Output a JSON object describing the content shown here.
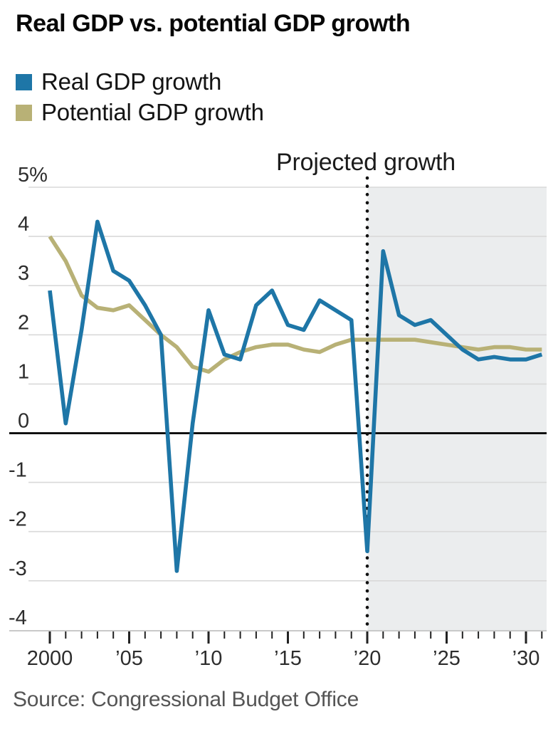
{
  "title": "Real GDP vs. potential GDP growth",
  "legend": [
    {
      "label": "Real GDP growth",
      "color": "#1e76a7"
    },
    {
      "label": "Potential GDP growth",
      "color": "#b8b176"
    }
  ],
  "source": "Source: Congressional Budget Office",
  "chart_data": {
    "type": "line",
    "title": "Real GDP vs. potential GDP growth",
    "annotation": "Projected growth",
    "y_unit": "%",
    "grid": true,
    "legend_position": "top-left",
    "ylim": [
      -4,
      5
    ],
    "projection_start": 2020,
    "projection_shade_color": "#ebedee",
    "zero_line_color": "#000000",
    "gridline_color": "#d9d9d9",
    "axis_line_color": "#c9c9c9",
    "tick_color": "#222222",
    "dotted_line_color": "#111111",
    "x": [
      2000,
      2001,
      2002,
      2003,
      2004,
      2005,
      2006,
      2007,
      2008,
      2009,
      2010,
      2011,
      2012,
      2013,
      2014,
      2015,
      2016,
      2017,
      2018,
      2019,
      2020,
      2021,
      2022,
      2023,
      2024,
      2025,
      2026,
      2027,
      2028,
      2029,
      2030,
      2031
    ],
    "series": [
      {
        "name": "Real GDP growth",
        "color": "#1e76a7",
        "values": [
          2.9,
          0.2,
          2.1,
          4.3,
          3.3,
          3.1,
          2.6,
          2.0,
          -2.8,
          0.2,
          2.5,
          1.6,
          1.5,
          2.6,
          2.9,
          2.2,
          2.1,
          2.7,
          2.5,
          2.3,
          -2.4,
          3.7,
          2.4,
          2.2,
          2.3,
          2.0,
          1.7,
          1.5,
          1.55,
          1.5,
          1.5,
          1.6
        ]
      },
      {
        "name": "Potential GDP growth",
        "color": "#b8b176",
        "values": [
          4.0,
          3.5,
          2.8,
          2.55,
          2.5,
          2.6,
          2.3,
          2.0,
          1.75,
          1.35,
          1.25,
          1.5,
          1.65,
          1.75,
          1.8,
          1.8,
          1.7,
          1.65,
          1.8,
          1.9,
          1.9,
          1.9,
          1.9,
          1.9,
          1.85,
          1.8,
          1.75,
          1.7,
          1.75,
          1.75,
          1.7,
          1.7
        ]
      }
    ],
    "yticks": [
      {
        "v": 5,
        "label": "5%"
      },
      {
        "v": 4,
        "label": "4"
      },
      {
        "v": 3,
        "label": "3"
      },
      {
        "v": 2,
        "label": "2"
      },
      {
        "v": 1,
        "label": "1"
      },
      {
        "v": 0,
        "label": "0"
      },
      {
        "v": -1,
        "label": "-1"
      },
      {
        "v": -2,
        "label": "-2"
      },
      {
        "v": -3,
        "label": "-3"
      },
      {
        "v": -4,
        "label": "-4"
      }
    ],
    "xticks": [
      {
        "v": 2000,
        "label": "2000"
      },
      {
        "v": 2005,
        "label": "’05"
      },
      {
        "v": 2010,
        "label": "’10"
      },
      {
        "v": 2015,
        "label": "’15"
      },
      {
        "v": 2020,
        "label": "’20"
      },
      {
        "v": 2025,
        "label": "’25"
      },
      {
        "v": 2030,
        "label": "’30"
      }
    ]
  }
}
